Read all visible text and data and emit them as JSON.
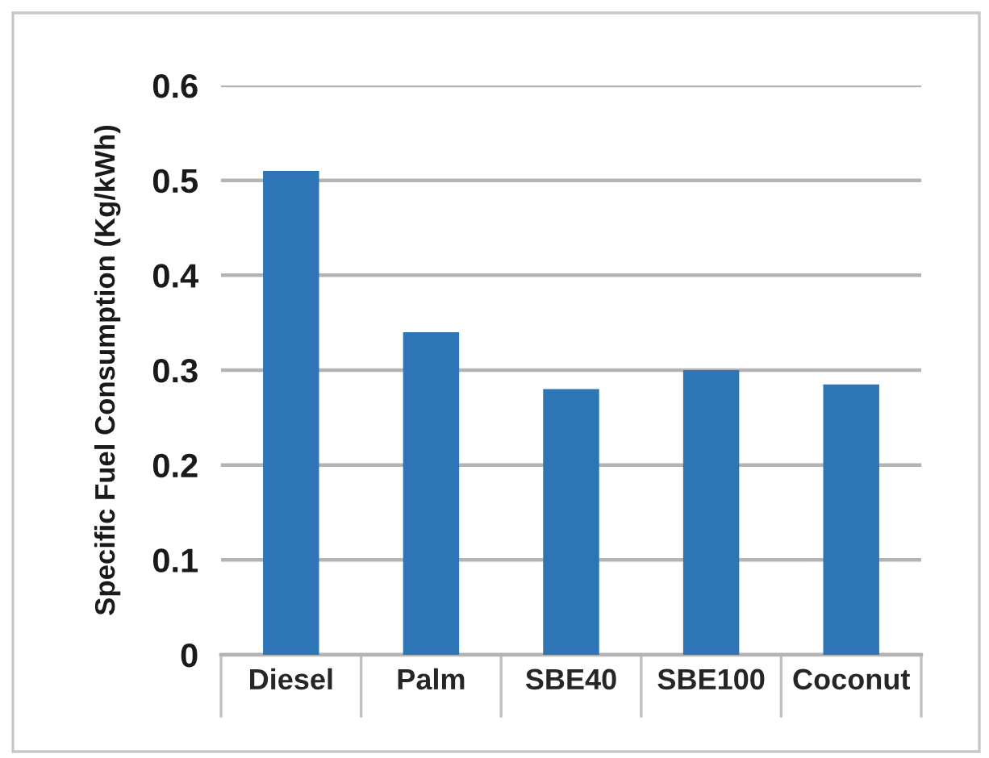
{
  "chart_data": {
    "type": "bar",
    "ylabel": "Specific Fuel Consumption (Kg/kWh)",
    "categories": [
      "Diesel",
      "Palm",
      "SBE40",
      "SBE100",
      "Coconut"
    ],
    "values": [
      0.51,
      0.34,
      0.28,
      0.3,
      0.285
    ],
    "color": "#2e75b6",
    "ylim": [
      0,
      0.6
    ],
    "yticks": [
      0,
      0.1,
      0.2,
      0.3,
      0.4,
      0.5,
      0.6
    ],
    "grid": "y",
    "legend": false
  }
}
